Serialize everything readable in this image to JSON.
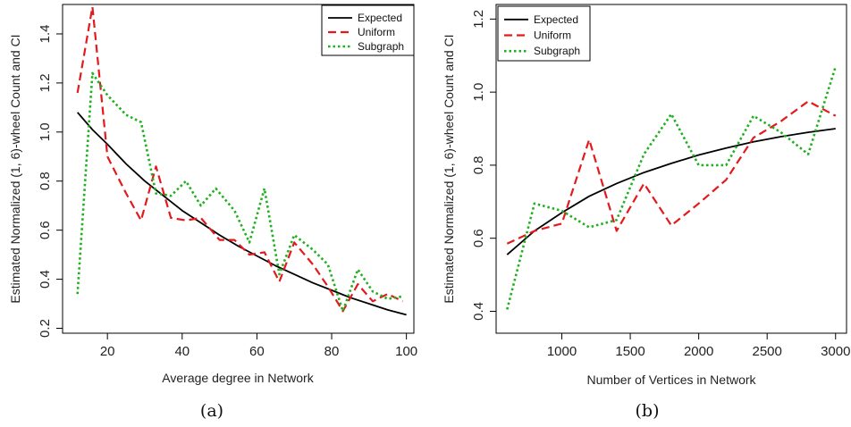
{
  "chart_data": [
    {
      "type": "line",
      "caption": "(a)",
      "xlabel": "Average degree in Network",
      "ylabel": "Estimated Normalized (1, 6)-wheel Count and CI",
      "xlim": [
        8,
        102
      ],
      "ylim": [
        0.18,
        1.52
      ],
      "x_ticks": [
        20,
        40,
        60,
        80,
        100
      ],
      "y_ticks": [
        0.2,
        0.4,
        0.6,
        0.8,
        1.0,
        1.2,
        1.4
      ],
      "y_tick_labels": [
        "0.2",
        "0.4",
        "0.6",
        "0.8",
        "1.0",
        "1.2",
        "1.4"
      ],
      "grid": false,
      "legend_position": "top-right",
      "series": [
        {
          "name": "Expected",
          "style": "solid",
          "color": "#000000",
          "x": [
            12,
            16,
            20,
            25,
            30,
            35,
            40,
            45,
            50,
            55,
            60,
            65,
            70,
            75,
            80,
            85,
            90,
            95,
            100
          ],
          "y": [
            1.08,
            1.01,
            0.95,
            0.87,
            0.8,
            0.74,
            0.68,
            0.63,
            0.58,
            0.535,
            0.495,
            0.455,
            0.42,
            0.385,
            0.355,
            0.325,
            0.3,
            0.275,
            0.255
          ]
        },
        {
          "name": "Uniform",
          "style": "dashed",
          "color": "#e31a1c",
          "x": [
            12,
            16,
            20,
            25,
            29,
            33,
            37,
            41,
            45,
            50,
            54,
            58,
            62,
            66,
            70,
            75,
            79,
            83,
            87,
            91,
            95,
            99
          ],
          "y": [
            1.16,
            1.51,
            0.9,
            0.75,
            0.64,
            0.86,
            0.65,
            0.64,
            0.65,
            0.56,
            0.56,
            0.5,
            0.51,
            0.39,
            0.55,
            0.46,
            0.37,
            0.27,
            0.38,
            0.31,
            0.34,
            0.31
          ]
        },
        {
          "name": "Subgraph",
          "style": "dotted",
          "color": "#1fb01f",
          "x": [
            12,
            16,
            20,
            25,
            29,
            33,
            37,
            41,
            45,
            49,
            54,
            58,
            62,
            66,
            70,
            75,
            79,
            83,
            87,
            91,
            95,
            99
          ],
          "y": [
            0.34,
            1.24,
            1.15,
            1.07,
            1.04,
            0.75,
            0.74,
            0.8,
            0.7,
            0.77,
            0.68,
            0.55,
            0.77,
            0.42,
            0.58,
            0.52,
            0.46,
            0.27,
            0.44,
            0.35,
            0.32,
            0.33
          ]
        }
      ]
    },
    {
      "type": "line",
      "caption": "(b)",
      "xlabel": "Number of Vertices in Network",
      "ylabel": "Estimated Normalized (1, 6)-wheel Count and CI",
      "xlim": [
        520,
        3080
      ],
      "ylim": [
        0.34,
        1.24
      ],
      "x_ticks": [
        1000,
        1500,
        2000,
        2500,
        3000
      ],
      "y_ticks": [
        0.4,
        0.6,
        0.8,
        1.0,
        1.2
      ],
      "y_tick_labels": [
        "0.4",
        "0.6",
        "0.8",
        "1.0",
        "1.2"
      ],
      "grid": false,
      "legend_position": "top-left",
      "series": [
        {
          "name": "Expected",
          "style": "solid",
          "color": "#000000",
          "x": [
            600,
            800,
            1000,
            1200,
            1400,
            1600,
            1800,
            2000,
            2200,
            2400,
            2600,
            2800,
            3000
          ],
          "y": [
            0.555,
            0.62,
            0.67,
            0.715,
            0.75,
            0.78,
            0.805,
            0.828,
            0.847,
            0.864,
            0.878,
            0.89,
            0.9
          ]
        },
        {
          "name": "Uniform",
          "style": "dashed",
          "color": "#e31a1c",
          "x": [
            600,
            800,
            1000,
            1200,
            1400,
            1600,
            1800,
            2000,
            2200,
            2400,
            2600,
            2800,
            3000
          ],
          "y": [
            0.585,
            0.62,
            0.64,
            0.87,
            0.62,
            0.75,
            0.635,
            0.695,
            0.76,
            0.875,
            0.92,
            0.975,
            0.935
          ]
        },
        {
          "name": "Subgraph",
          "style": "dotted",
          "color": "#1fb01f",
          "x": [
            600,
            800,
            1000,
            1200,
            1400,
            1600,
            1800,
            2000,
            2200,
            2400,
            2600,
            2800,
            3000
          ],
          "y": [
            0.405,
            0.695,
            0.675,
            0.63,
            0.65,
            0.83,
            0.94,
            0.8,
            0.8,
            0.935,
            0.89,
            0.83,
            1.07
          ]
        }
      ]
    }
  ]
}
